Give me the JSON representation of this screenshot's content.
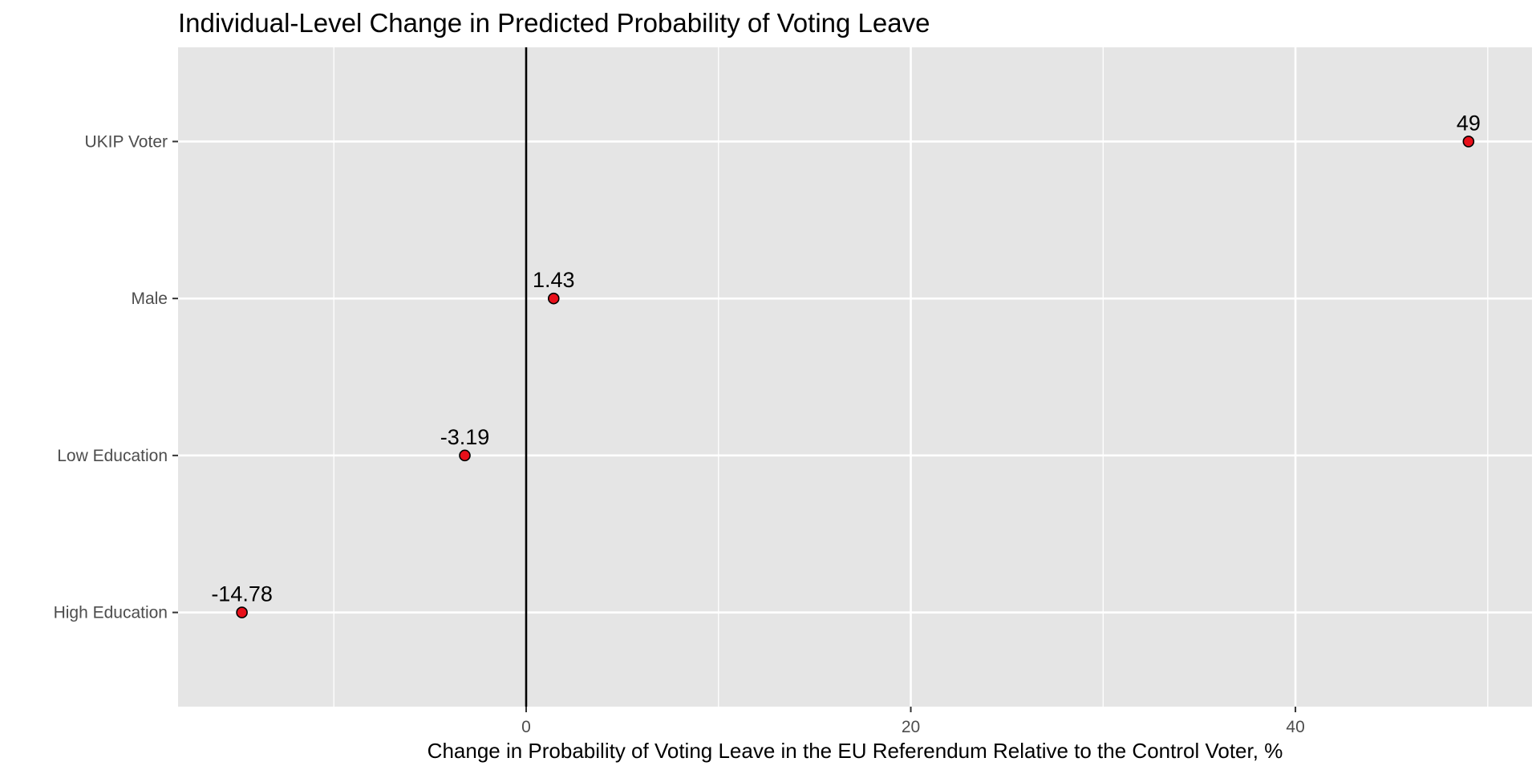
{
  "chart_data": {
    "type": "scatter",
    "title": "Individual-Level Change in Predicted Probability of Voting Leave",
    "xlabel": "Change in Probability of Voting Leave in the EU Referendum Relative to the Control Voter, %",
    "ylabel": "",
    "xlim": [
      -18.1,
      52.3
    ],
    "x_ticks": [
      0,
      20,
      40
    ],
    "x_minor_ticks": [
      -10,
      10,
      30,
      50
    ],
    "categories": [
      "UKIP Voter",
      "Male",
      "Low Education",
      "High Education"
    ],
    "values": [
      49,
      1.43,
      -3.19,
      -14.78
    ],
    "data_labels": [
      "49",
      "1.43",
      "-3.19",
      "-14.78"
    ],
    "reference_line_x": 0,
    "grid": true,
    "legend": "none",
    "colors": {
      "panel_background": "#e5e5e5",
      "grid": "#ffffff",
      "point_fill": "#e8101a",
      "point_stroke": "#000000",
      "reference_line": "#000000",
      "tick_text": "#4d4d4d"
    }
  }
}
